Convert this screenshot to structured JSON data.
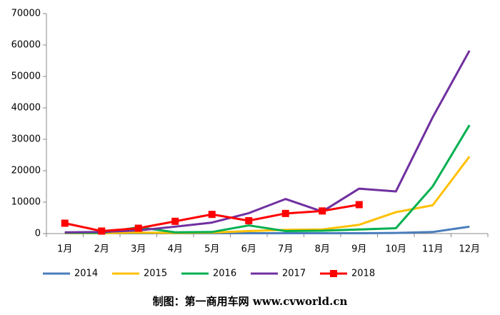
{
  "chart_data": {
    "type": "line",
    "categories": [
      "1月",
      "2月",
      "3月",
      "4月",
      "5月",
      "6月",
      "7月",
      "8月",
      "9月",
      "10月",
      "11月",
      "12月"
    ],
    "series": [
      {
        "name": "2014",
        "color": "#4a7ebb",
        "values": [
          100,
          100,
          100,
          100,
          100,
          100,
          100,
          100,
          100,
          200,
          500,
          2200
        ]
      },
      {
        "name": "2015",
        "color": "#ffc000",
        "values": [
          200,
          100,
          300,
          200,
          300,
          800,
          1200,
          1300,
          2800,
          6800,
          9000,
          24500
        ]
      },
      {
        "name": "2016",
        "color": "#00b050",
        "values": [
          300,
          200,
          2000,
          400,
          500,
          2600,
          800,
          900,
          1300,
          1700,
          15000,
          34500
        ]
      },
      {
        "name": "2017",
        "color": "#7030a0",
        "values": [
          400,
          500,
          1000,
          2200,
          3500,
          6500,
          11000,
          7000,
          14300,
          13400,
          37000,
          58200
        ]
      },
      {
        "name": "2018",
        "color": "#ff0000",
        "marker": "square",
        "values": [
          3300,
          800,
          1700,
          3900,
          6100,
          4100,
          6400,
          7200,
          9200,
          null,
          null,
          null
        ]
      }
    ],
    "ylim": [
      0,
      70000
    ],
    "yticks": [
      0,
      10000,
      20000,
      30000,
      40000,
      50000,
      60000,
      70000
    ],
    "legend": "bottom",
    "grid": false,
    "footer": "制图：第一商用车网 www.cvworld.cn"
  }
}
